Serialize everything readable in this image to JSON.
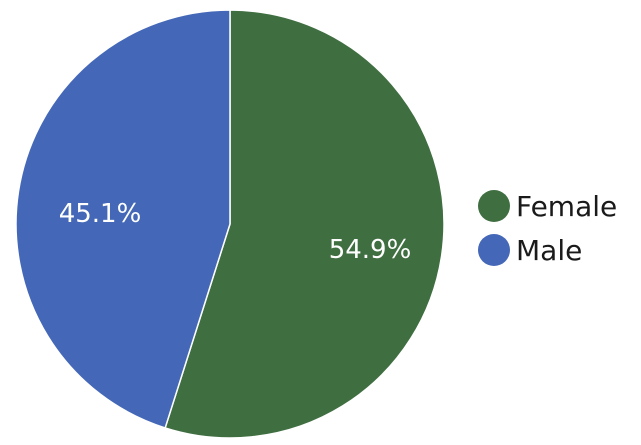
{
  "chart_data": {
    "type": "pie",
    "title": "",
    "start_angle_deg": 0,
    "direction": "clockwise",
    "legend_position": "right",
    "slices": [
      {
        "label": "Female",
        "value": 54.9,
        "display": "54.9%",
        "color": "#3f6e41"
      },
      {
        "label": "Male",
        "value": 45.1,
        "display": "45.1%",
        "color": "#4468b7"
      }
    ]
  }
}
